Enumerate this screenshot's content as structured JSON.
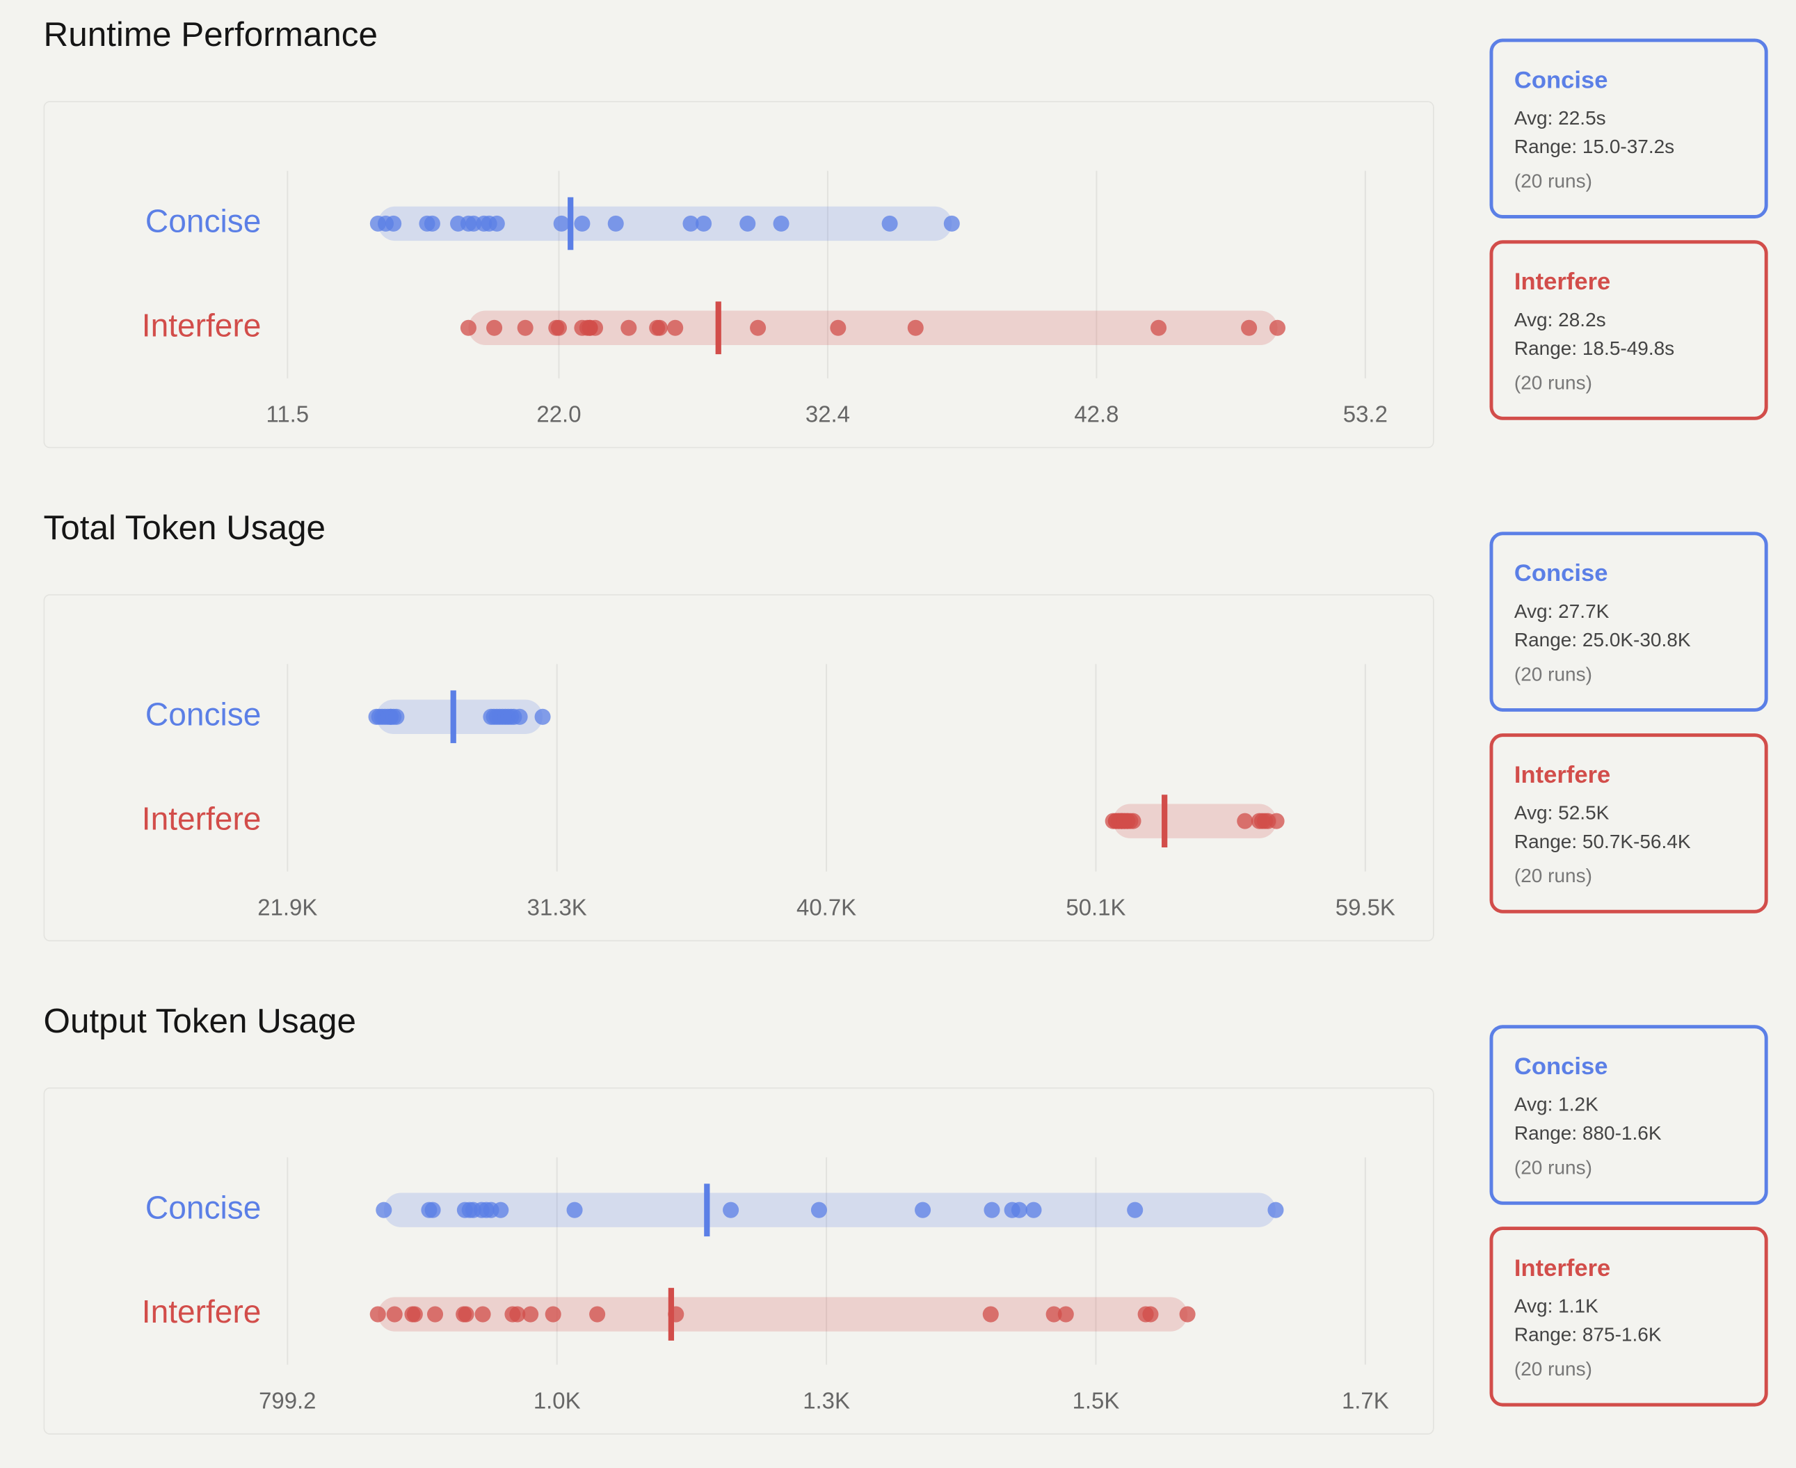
{
  "chart_data": [
    {
      "type": "strip",
      "title": "Runtime Performance",
      "xlim": [
        11.5,
        53.2
      ],
      "xticks": [
        11.5,
        {
          "value": 22,
          "label": "22.0"
        },
        32.4,
        42.8,
        53.2
      ],
      "grid": true,
      "series": [
        {
          "name": "Concise",
          "color": "#5b7fe6",
          "values": [
            15.0,
            15.3,
            15.6,
            16.9,
            17.1,
            18.1,
            18.5,
            18.7,
            19.1,
            19.3,
            19.6,
            22.1,
            22.9,
            24.2,
            27.1,
            27.6,
            29.3,
            30.6,
            34.8,
            37.2
          ],
          "mean": 22.45,
          "range": [
            15.0,
            37.2
          ],
          "avg_label": "Avg: 22.5s",
          "range_label": "Range: 15.0-37.2s",
          "runs_label": "(20 runs)"
        },
        {
          "name": "Interfere",
          "color": "#d24d4a",
          "values": [
            18.5,
            19.5,
            20.7,
            21.9,
            22.0,
            22.9,
            23.1,
            23.2,
            23.2,
            23.4,
            24.7,
            25.8,
            25.9,
            26.5,
            29.7,
            32.8,
            35.8,
            45.2,
            48.7,
            49.8
          ],
          "mean": 28.17,
          "range": [
            18.5,
            49.8
          ],
          "avg_label": "Avg: 28.2s",
          "range_label": "Range: 18.5-49.8s",
          "runs_label": "(20 runs)"
        }
      ]
    },
    {
      "type": "strip",
      "title": "Total Token Usage",
      "xlim": [
        21900,
        59500
      ],
      "xticks": [
        {
          "value": 21900,
          "label": "21.9K"
        },
        {
          "value": 31300,
          "label": "31.3K"
        },
        {
          "value": 40700,
          "label": "40.7K"
        },
        {
          "value": 50100,
          "label": "50.1K"
        },
        {
          "value": 59500,
          "label": "59.5K"
        }
      ],
      "grid": true,
      "series": [
        {
          "name": "Concise",
          "color": "#5b7fe6",
          "values": [
            25000,
            25100,
            25200,
            25300,
            25400,
            25500,
            25500,
            25600,
            25700,
            29000,
            29100,
            29200,
            29300,
            29400,
            29500,
            29600,
            29700,
            29800,
            30000,
            30800
          ],
          "mean": 27685,
          "range": [
            25000,
            30800
          ],
          "avg_label": "Avg: 27.7K",
          "range_label": "Range: 25.0K-30.8K",
          "runs_label": "(20 runs)"
        },
        {
          "name": "Interfere",
          "color": "#d24d4a",
          "values": [
            50700,
            50800,
            50800,
            50900,
            50900,
            51000,
            51000,
            51000,
            51100,
            51100,
            51200,
            51200,
            51300,
            51400,
            55300,
            55800,
            55900,
            56000,
            56100,
            56400
          ],
          "mean": 52495,
          "range": [
            50700,
            56400
          ],
          "avg_label": "Avg: 52.5K",
          "range_label": "Range: 50.7K-56.4K",
          "runs_label": "(20 runs)"
        }
      ]
    },
    {
      "type": "strip",
      "title": "Output Token Usage",
      "xlim": [
        799.2,
        1703.2
      ],
      "xticks": [
        799.2,
        {
          "value": 1025.2,
          "label": "1.0K"
        },
        {
          "value": 1251.2,
          "label": "1.3K"
        },
        {
          "value": 1477.2,
          "label": "1.5K"
        },
        {
          "value": 1703.2,
          "label": "1.7K"
        }
      ],
      "grid": true,
      "series": [
        {
          "name": "Concise",
          "color": "#5b7fe6",
          "values": [
            880,
            918,
            921,
            948,
            952,
            955,
            962,
            966,
            970,
            978,
            1040,
            1171,
            1245,
            1332,
            1390,
            1407,
            1413,
            1425,
            1510,
            1628
          ],
          "mean": 1151,
          "range": [
            880,
            1628
          ],
          "avg_label": "Avg: 1.2K",
          "range_label": "Range: 880-1.6K",
          "runs_label": "(20 runs)"
        },
        {
          "name": "Interfere",
          "color": "#d24d4a",
          "values": [
            875,
            889,
            904,
            906,
            923,
            947,
            949,
            963,
            988,
            992,
            1003,
            1022,
            1059,
            1125,
            1389,
            1442,
            1452,
            1519,
            1523,
            1554
          ],
          "mean": 1121,
          "range": [
            875,
            1554
          ],
          "avg_label": "Avg: 1.1K",
          "range_label": "Range: 875-1.6K",
          "runs_label": "(20 runs)"
        }
      ]
    }
  ]
}
